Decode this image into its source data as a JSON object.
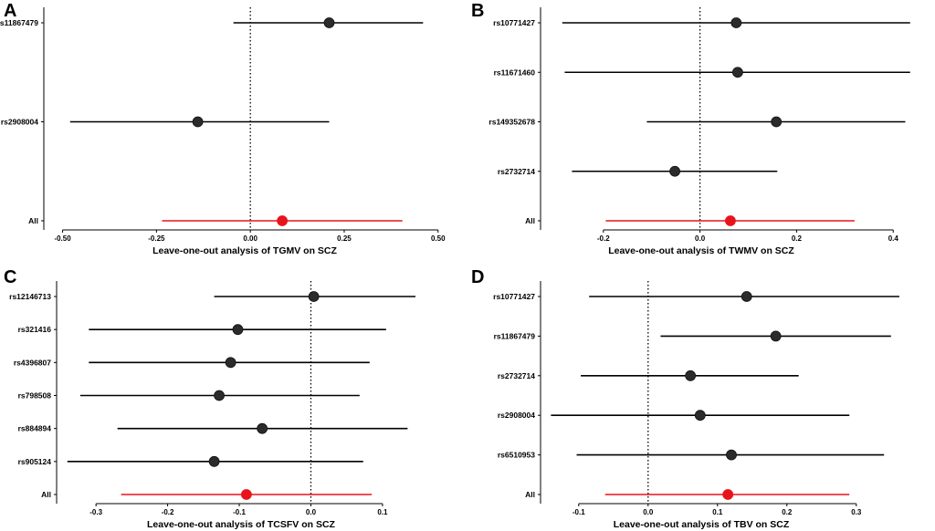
{
  "figure": "Leave-one-out analysis forest plots",
  "colors": {
    "snp_line": "#000000",
    "snp_point": "#2b2b2b",
    "all_line": "#e8141b",
    "all_point": "#e8141b"
  },
  "chart_data": [
    {
      "panel": "A",
      "type": "scatter",
      "xlabel": "Leave-one-out analysis of TGMV on SCZ",
      "xlim": [
        -0.55,
        0.52
      ],
      "xticks": [
        -0.5,
        -0.25,
        0.0,
        0.25,
        0.5
      ],
      "xtick_labels": [
        "-0.50",
        "-0.25",
        "0.00",
        "0.25",
        "0.50"
      ],
      "labels": [
        "rs11867479",
        "rs2908004",
        "All"
      ],
      "estimates": [
        0.21,
        -0.14,
        0.085
      ],
      "ci_low": [
        -0.045,
        -0.48,
        -0.235
      ],
      "ci_high": [
        0.46,
        0.21,
        0.405
      ]
    },
    {
      "panel": "B",
      "type": "scatter",
      "xlabel": "Leave-one-out analysis of TWMV on SCZ",
      "xlim": [
        -0.33,
        0.46
      ],
      "xticks": [
        -0.2,
        0.0,
        0.2,
        0.4
      ],
      "xtick_labels": [
        "-0.2",
        "0.0",
        "0.2",
        "0.4"
      ],
      "labels": [
        "rs10771427",
        "rs11671460",
        "rs149352678",
        "rs2732714",
        "All"
      ],
      "estimates": [
        0.075,
        0.078,
        0.158,
        -0.052,
        0.063
      ],
      "ci_low": [
        -0.285,
        -0.28,
        -0.11,
        -0.265,
        -0.195
      ],
      "ci_high": [
        0.435,
        0.435,
        0.425,
        0.16,
        0.32
      ]
    },
    {
      "panel": "C",
      "type": "scatter",
      "xlabel": "Leave-one-out analysis of TCSFV on SCZ",
      "xlim": [
        -0.355,
        0.16
      ],
      "xticks": [
        -0.3,
        -0.2,
        -0.1,
        0.0,
        0.1
      ],
      "xtick_labels": [
        "-0.3",
        "-0.2",
        "-0.1",
        "0.0",
        "0.1"
      ],
      "labels": [
        "rs12146713",
        "rs321416",
        "rs4396807",
        "rs798508",
        "rs884894",
        "rs905124",
        "All"
      ],
      "estimates": [
        0.004,
        -0.102,
        -0.112,
        -0.128,
        -0.068,
        -0.135,
        -0.09
      ],
      "ci_low": [
        -0.135,
        -0.31,
        -0.31,
        -0.322,
        -0.27,
        -0.34,
        -0.265
      ],
      "ci_high": [
        0.146,
        0.105,
        0.082,
        0.068,
        0.135,
        0.073,
        0.085
      ]
    },
    {
      "panel": "D",
      "type": "scatter",
      "xlabel": "Leave-one-out analysis of TBV on SCZ",
      "xlim": [
        -0.155,
        0.395
      ],
      "xticks": [
        -0.1,
        0.0,
        0.1,
        0.2,
        0.3
      ],
      "xtick_labels": [
        "-0.1",
        "0.0",
        "0.1",
        "0.2",
        "0.3"
      ],
      "labels": [
        "rs10771427",
        "rs11867479",
        "rs2732714",
        "rs2908004",
        "rs6510953",
        "All"
      ],
      "estimates": [
        0.142,
        0.184,
        0.061,
        0.075,
        0.12,
        0.115
      ],
      "ci_low": [
        -0.085,
        0.018,
        -0.097,
        -0.14,
        -0.103,
        -0.062
      ],
      "ci_high": [
        0.362,
        0.35,
        0.217,
        0.29,
        0.34,
        0.29
      ]
    }
  ]
}
